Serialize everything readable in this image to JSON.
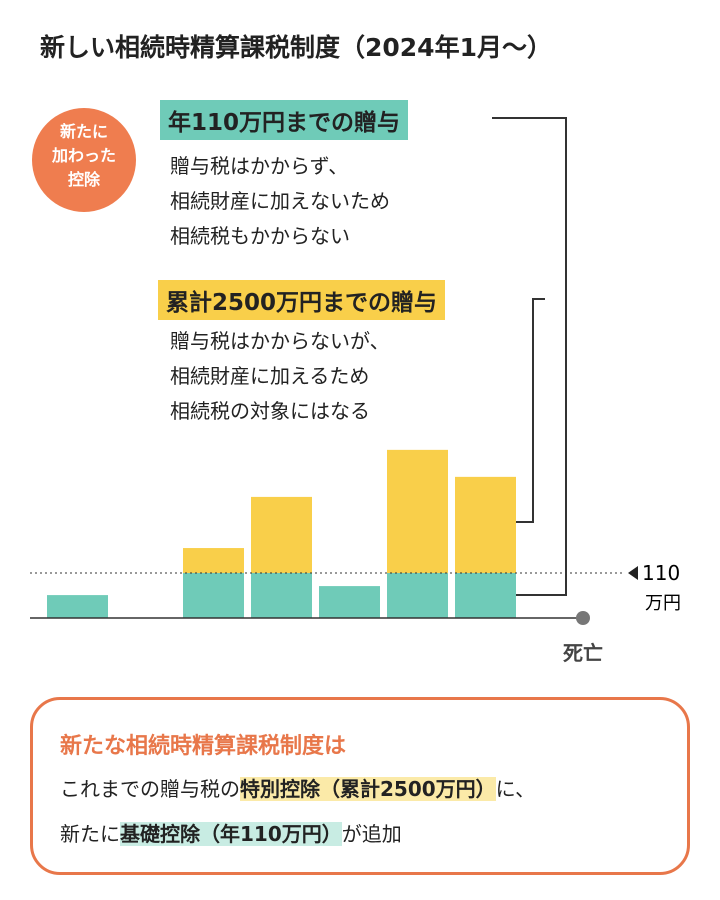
{
  "chart_data": {
    "type": "bar",
    "title": "新しい相続時精算課税制度（2024年1月〜）",
    "badge": [
      "新たに",
      "加わった",
      "控除"
    ],
    "annotations": [
      {
        "heading": "年110万円までの贈与",
        "color": "#6fcbb8",
        "lines": [
          "贈与税はかからず、",
          "相続財産に加えないため",
          "相続税もかからない"
        ]
      },
      {
        "heading": "累計2500万円までの贈与",
        "color": "#f9cf4a",
        "lines": [
          "贈与税はかからないが、",
          "相続財産に加えるため",
          "相続税の対象にはなる"
        ]
      }
    ],
    "categories": [
      null,
      null,
      null,
      null,
      null,
      null,
      null
    ],
    "series": [
      {
        "color": "#6fcbb8",
        "values": [
          56,
          null,
          110,
          110,
          78,
          110,
          110
        ]
      },
      {
        "color": "#f9cf4a",
        "values": [
          null,
          null,
          61,
          186,
          null,
          301,
          235
        ]
      }
    ],
    "ylim": [
      0,
      440
    ],
    "reference": {
      "value": 110,
      "unit": "万円"
    },
    "end_label": "死亡",
    "summary": {
      "title": "新たな相続時精算課税制度は",
      "line1": [
        "これまでの贈与税の",
        "特別控除（累計2500万円）",
        "に、"
      ],
      "line2": [
        "新たに",
        "基礎控除（年110万円）",
        "が追加"
      ]
    }
  }
}
